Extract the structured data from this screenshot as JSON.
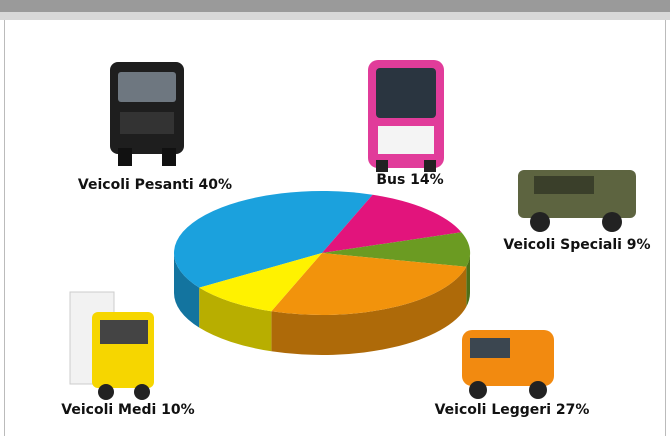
{
  "chart_data": {
    "type": "pie",
    "categories": [
      "Veicoli Pesanti",
      "Bus",
      "Veicoli Speciali",
      "Veicoli Leggeri",
      "Veicoli Medi"
    ],
    "values": [
      40,
      14,
      9,
      27,
      10
    ],
    "value_labels": [
      "40%",
      "14%",
      "9%",
      "27%",
      "10%"
    ],
    "colors": [
      "#1ba1dd",
      "#e2147c",
      "#6b9b22",
      "#f2930c",
      "#fff200"
    ]
  }
}
